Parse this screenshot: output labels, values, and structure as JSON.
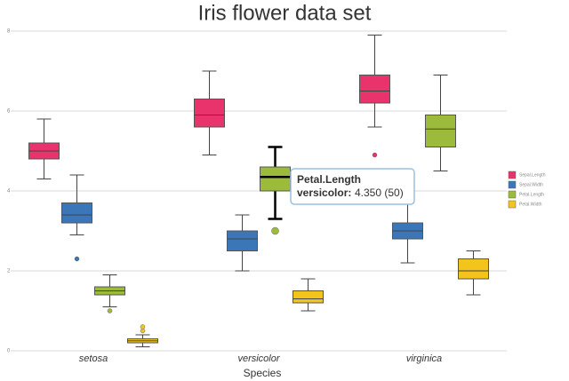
{
  "chart_data": {
    "type": "boxplot",
    "title": "Iris flower data set",
    "x_label": "Species",
    "categories": [
      "setosa",
      "versicolor",
      "virginica"
    ],
    "ylim": [
      0,
      8
    ],
    "yticks": [
      0,
      2,
      4,
      6,
      8
    ],
    "grid": true,
    "legend": "right",
    "series": [
      {
        "name": "Sepal.Length",
        "color": "#e8336c",
        "boxes": [
          {
            "min": 4.3,
            "q1": 4.8,
            "median": 5.0,
            "q3": 5.2,
            "max": 5.8,
            "outliers": []
          },
          {
            "min": 4.9,
            "q1": 5.6,
            "median": 5.9,
            "q3": 6.3,
            "max": 7.0,
            "outliers": []
          },
          {
            "min": 5.6,
            "q1": 6.2,
            "median": 6.5,
            "q3": 6.9,
            "max": 7.9,
            "outliers": [
              4.9
            ]
          }
        ]
      },
      {
        "name": "Sepal.Width",
        "color": "#3b76b8",
        "boxes": [
          {
            "min": 2.9,
            "q1": 3.2,
            "median": 3.4,
            "q3": 3.7,
            "max": 4.4,
            "outliers": [
              2.3
            ]
          },
          {
            "min": 2.0,
            "q1": 2.5,
            "median": 2.8,
            "q3": 3.0,
            "max": 3.4,
            "outliers": []
          },
          {
            "min": 2.2,
            "q1": 2.8,
            "median": 3.0,
            "q3": 3.2,
            "max": 3.8,
            "outliers": []
          }
        ]
      },
      {
        "name": "Petal.Length",
        "color": "#9cbb3a",
        "boxes": [
          {
            "min": 1.1,
            "q1": 1.4,
            "median": 1.5,
            "q3": 1.6,
            "max": 1.9,
            "outliers": [
              1.0
            ]
          },
          {
            "min": 3.3,
            "q1": 4.0,
            "median": 4.35,
            "q3": 4.6,
            "max": 5.1,
            "outliers": [
              3.0
            ]
          },
          {
            "min": 4.5,
            "q1": 5.1,
            "median": 5.55,
            "q3": 5.9,
            "max": 6.9,
            "outliers": []
          }
        ]
      },
      {
        "name": "Petal.Width",
        "color": "#f2c41c",
        "boxes": [
          {
            "min": 0.1,
            "q1": 0.2,
            "median": 0.25,
            "q3": 0.3,
            "max": 0.4,
            "outliers": [
              0.5,
              0.6
            ]
          },
          {
            "min": 1.0,
            "q1": 1.2,
            "median": 1.3,
            "q3": 1.5,
            "max": 1.8,
            "outliers": []
          },
          {
            "min": 1.4,
            "q1": 1.8,
            "median": 2.0,
            "q3": 2.3,
            "max": 2.5,
            "outliers": []
          }
        ]
      }
    ],
    "tooltip": {
      "title": "Petal.Length",
      "label": "versicolor:",
      "value": "4.350 (50)"
    }
  }
}
